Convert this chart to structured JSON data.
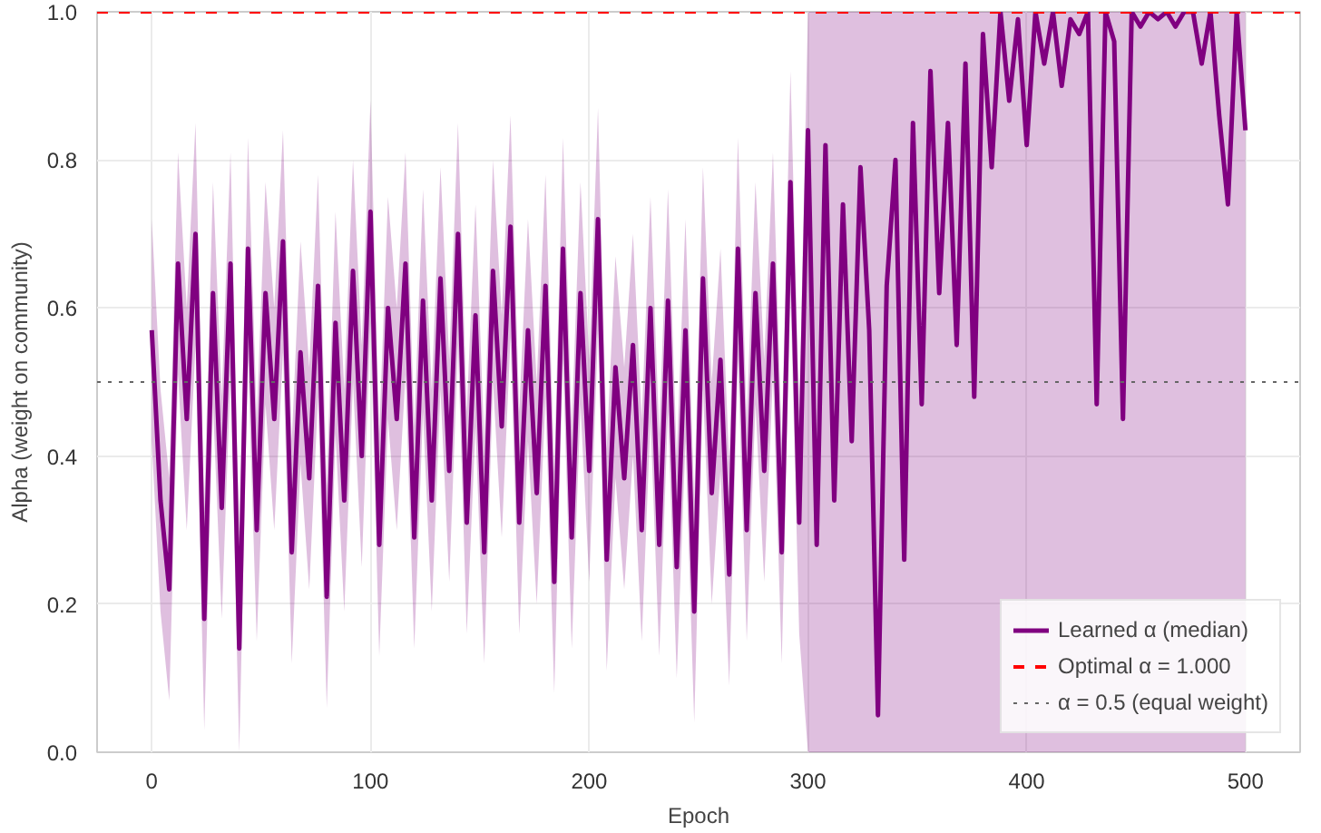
{
  "chart_data": {
    "type": "line",
    "xlabel": "Epoch",
    "ylabel": "Alpha (weight on community)",
    "x": [
      0,
      4,
      8,
      12,
      16,
      20,
      24,
      28,
      32,
      36,
      40,
      44,
      48,
      52,
      56,
      60,
      64,
      68,
      72,
      76,
      80,
      84,
      88,
      92,
      96,
      100,
      104,
      108,
      112,
      116,
      120,
      124,
      128,
      132,
      136,
      140,
      144,
      148,
      152,
      156,
      160,
      164,
      168,
      172,
      176,
      180,
      184,
      188,
      192,
      196,
      200,
      204,
      208,
      212,
      216,
      220,
      224,
      228,
      232,
      236,
      240,
      244,
      248,
      252,
      256,
      260,
      264,
      268,
      272,
      276,
      280,
      284,
      288,
      292,
      296,
      300,
      304,
      308,
      312,
      316,
      320,
      324,
      328,
      332,
      336,
      340,
      344,
      348,
      352,
      356,
      360,
      364,
      368,
      372,
      376,
      380,
      384,
      388,
      392,
      396,
      400,
      404,
      408,
      412,
      416,
      420,
      424,
      428,
      432,
      436,
      440,
      444,
      448,
      452,
      456,
      460,
      464,
      468,
      472,
      476,
      480,
      484,
      488,
      492,
      496,
      500
    ],
    "series": [
      {
        "name": "Learned α (median)",
        "color": "#800080",
        "line_style": "solid",
        "values": [
          0.57,
          0.34,
          0.22,
          0.66,
          0.45,
          0.7,
          0.18,
          0.62,
          0.33,
          0.66,
          0.14,
          0.68,
          0.3,
          0.62,
          0.45,
          0.69,
          0.27,
          0.54,
          0.37,
          0.63,
          0.21,
          0.58,
          0.34,
          0.65,
          0.4,
          0.73,
          0.28,
          0.6,
          0.45,
          0.66,
          0.29,
          0.61,
          0.34,
          0.64,
          0.38,
          0.7,
          0.31,
          0.59,
          0.27,
          0.65,
          0.44,
          0.71,
          0.31,
          0.57,
          0.35,
          0.63,
          0.23,
          0.68,
          0.29,
          0.62,
          0.38,
          0.72,
          0.26,
          0.52,
          0.37,
          0.55,
          0.3,
          0.6,
          0.28,
          0.61,
          0.25,
          0.57,
          0.19,
          0.64,
          0.35,
          0.53,
          0.24,
          0.68,
          0.3,
          0.62,
          0.38,
          0.66,
          0.27,
          0.77,
          0.31,
          0.84,
          0.28,
          0.82,
          0.34,
          0.74,
          0.42,
          0.79,
          0.57,
          0.05,
          0.63,
          0.8,
          0.26,
          0.85,
          0.47,
          0.92,
          0.62,
          0.85,
          0.55,
          0.93,
          0.48,
          0.97,
          0.79,
          1.0,
          0.88,
          0.99,
          0.82,
          1.0,
          0.93,
          1.0,
          0.9,
          0.99,
          0.97,
          1.0,
          0.47,
          1.0,
          0.96,
          0.45,
          1.0,
          0.98,
          1.0,
          0.99,
          1.0,
          0.98,
          1.0,
          1.0,
          0.93,
          1.0,
          0.86,
          0.74,
          1.0,
          0.84
        ],
        "lower": [
          0.42,
          0.19,
          0.07,
          0.51,
          0.3,
          0.55,
          0.03,
          0.47,
          0.18,
          0.51,
          0.0,
          0.53,
          0.15,
          0.47,
          0.3,
          0.54,
          0.12,
          0.39,
          0.22,
          0.48,
          0.06,
          0.43,
          0.19,
          0.5,
          0.25,
          0.58,
          0.13,
          0.45,
          0.3,
          0.51,
          0.14,
          0.46,
          0.19,
          0.49,
          0.23,
          0.55,
          0.16,
          0.44,
          0.12,
          0.5,
          0.29,
          0.56,
          0.16,
          0.42,
          0.2,
          0.48,
          0.08,
          0.53,
          0.14,
          0.47,
          0.23,
          0.57,
          0.11,
          0.37,
          0.22,
          0.4,
          0.15,
          0.45,
          0.13,
          0.46,
          0.1,
          0.42,
          0.04,
          0.49,
          0.2,
          0.38,
          0.09,
          0.53,
          0.15,
          0.47,
          0.23,
          0.51,
          0.12,
          0.62,
          0.16,
          0.0,
          0.0,
          0.0,
          0.0,
          0.0,
          0.0,
          0.0,
          0.0,
          0.0,
          0.0,
          0.0,
          0.0,
          0.0,
          0.0,
          0.0,
          0.0,
          0.0,
          0.0,
          0.0,
          0.0,
          0.0,
          0.0,
          0.0,
          0.0,
          0.0,
          0.0,
          0.0,
          0.0,
          0.0,
          0.0,
          0.0,
          0.0,
          0.0,
          0.0,
          0.0,
          0.0,
          0.0,
          0.0,
          0.0,
          0.0,
          0.0,
          0.0,
          0.0,
          0.0,
          0.0,
          0.0,
          0.0,
          0.0,
          0.0,
          0.0,
          0.0
        ],
        "upper": [
          0.72,
          0.49,
          0.37,
          0.81,
          0.6,
          0.85,
          0.33,
          0.77,
          0.48,
          0.81,
          0.29,
          0.83,
          0.45,
          0.77,
          0.6,
          0.84,
          0.42,
          0.69,
          0.52,
          0.78,
          0.36,
          0.73,
          0.49,
          0.8,
          0.55,
          0.88,
          0.43,
          0.75,
          0.6,
          0.81,
          0.44,
          0.76,
          0.49,
          0.79,
          0.53,
          0.85,
          0.46,
          0.74,
          0.42,
          0.8,
          0.59,
          0.86,
          0.46,
          0.72,
          0.5,
          0.78,
          0.38,
          0.83,
          0.44,
          0.77,
          0.53,
          0.87,
          0.41,
          0.67,
          0.52,
          0.7,
          0.45,
          0.75,
          0.43,
          0.76,
          0.4,
          0.72,
          0.34,
          0.79,
          0.5,
          0.68,
          0.39,
          0.83,
          0.45,
          0.77,
          0.53,
          0.81,
          0.42,
          0.92,
          0.46,
          1.0,
          1.0,
          1.0,
          1.0,
          1.0,
          1.0,
          1.0,
          1.0,
          1.0,
          1.0,
          1.0,
          1.0,
          1.0,
          1.0,
          1.0,
          1.0,
          1.0,
          1.0,
          1.0,
          1.0,
          1.0,
          1.0,
          1.0,
          1.0,
          1.0,
          1.0,
          1.0,
          1.0,
          1.0,
          1.0,
          1.0,
          1.0,
          1.0,
          1.0,
          1.0,
          1.0,
          1.0,
          1.0,
          1.0,
          1.0,
          1.0,
          1.0,
          1.0,
          1.0,
          1.0,
          1.0,
          1.0,
          1.0,
          1.0,
          1.0,
          1.0
        ]
      }
    ],
    "ref_lines": [
      {
        "axis": "y",
        "value": 1.0,
        "label": "Optimal α = 1.000",
        "color": "#ff0000",
        "line_style": "dashed"
      },
      {
        "axis": "y",
        "value": 0.5,
        "label": "α = 0.5 (equal weight)",
        "color": "#666666",
        "line_style": "dotted"
      }
    ],
    "xlim": [
      -25,
      525
    ],
    "ylim": [
      0,
      1
    ],
    "xticks": [
      0,
      100,
      200,
      300,
      400,
      500
    ],
    "yticks": [
      {
        "value": 0,
        "label": "0.0"
      },
      {
        "value": 0.2,
        "label": "0.2"
      },
      {
        "value": 0.4,
        "label": "0.4"
      },
      {
        "value": 0.6,
        "label": "0.6"
      },
      {
        "value": 0.8,
        "label": "0.8"
      },
      {
        "value": 1.0,
        "label": "1.0"
      }
    ],
    "grid": true,
    "legend": "bottom right"
  }
}
